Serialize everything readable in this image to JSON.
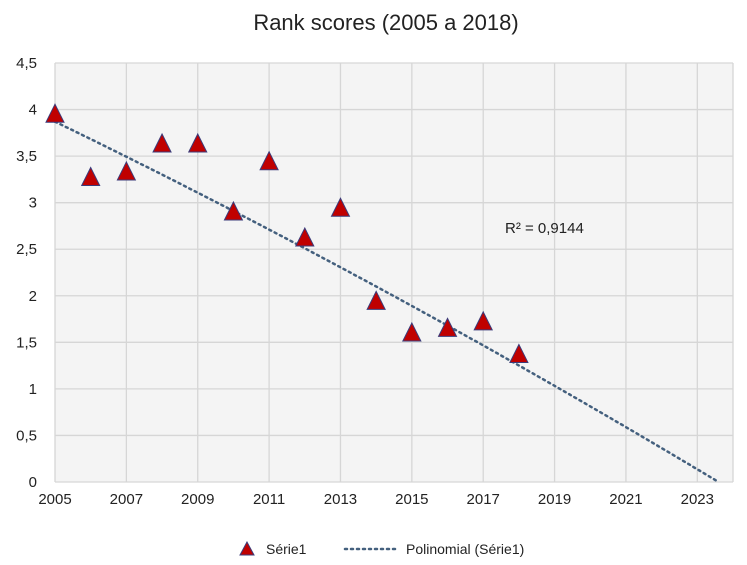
{
  "chart_data": {
    "type": "scatter",
    "title": "Rank scores (2005 a 2018)",
    "xlabel": "",
    "ylabel": "",
    "xlim": [
      2005,
      2024
    ],
    "ylim": [
      0,
      4.5
    ],
    "x_ticks": [
      "2005",
      "2007",
      "2009",
      "2011",
      "2013",
      "2015",
      "2017",
      "2019",
      "2021",
      "2023"
    ],
    "y_ticks": [
      "0",
      "0,5",
      "1",
      "1,5",
      "2",
      "2,5",
      "3",
      "3,5",
      "4",
      "4,5"
    ],
    "grid": true,
    "series": [
      {
        "name": "Série1",
        "color": "#c00000",
        "x": [
          2005,
          2006,
          2007,
          2008,
          2009,
          2010,
          2011,
          2012,
          2013,
          2014,
          2015,
          2016,
          2017,
          2018
        ],
        "y": [
          3.95,
          3.27,
          3.33,
          3.63,
          3.63,
          2.9,
          3.44,
          2.62,
          2.94,
          1.94,
          1.6,
          1.65,
          1.72,
          1.37
        ]
      }
    ],
    "trendline": {
      "name": "Polinomial (Série1)",
      "type": "polynomial",
      "order": 2,
      "color": "#44607e",
      "coefficients_t": {
        "a": -0.00119,
        "b": -0.186,
        "c": 3.87,
        "t_origin": 2005
      },
      "x_end": 2023.6
    },
    "annotation": "R² = 0,9144",
    "legend_position": "bottom"
  }
}
